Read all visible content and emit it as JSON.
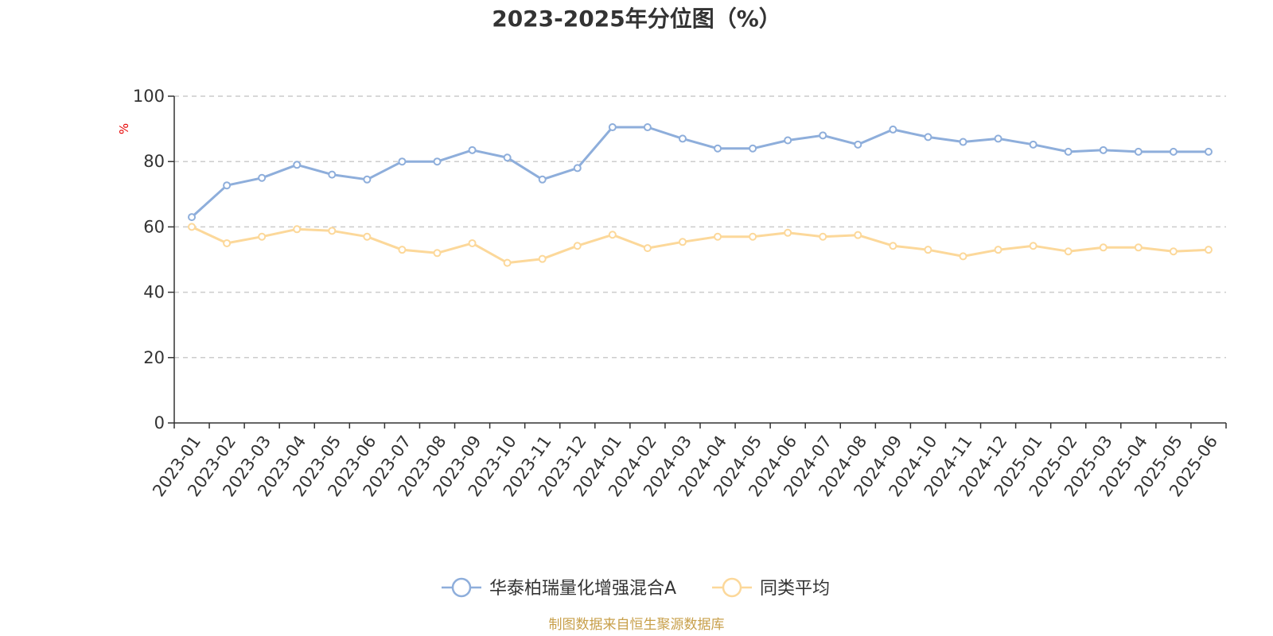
{
  "source_note": "制图数据来自恒生聚源数据库",
  "chart_data": {
    "type": "line",
    "title": "2023-2025年分位图（%）",
    "ylabel": "%",
    "xlabel": "",
    "ylim": [
      0,
      100
    ],
    "yticks": [
      0,
      20,
      40,
      60,
      80,
      100
    ],
    "grid": true,
    "legend_position": "bottom-center",
    "categories": [
      "2023-01",
      "2023-02",
      "2023-03",
      "2023-04",
      "2023-05",
      "2023-06",
      "2023-07",
      "2023-08",
      "2023-09",
      "2023-10",
      "2023-11",
      "2023-12",
      "2024-01",
      "2024-02",
      "2024-03",
      "2024-04",
      "2024-05",
      "2024-06",
      "2024-07",
      "2024-08",
      "2024-09",
      "2024-10",
      "2024-11",
      "2024-12",
      "2025-01",
      "2025-02",
      "2025-03",
      "2025-04",
      "2025-05",
      "2025-06"
    ],
    "series": [
      {
        "name": "华泰柏瑞量化增强混合A",
        "color": "#8eaedb",
        "values": [
          63,
          72.7,
          75,
          79,
          76,
          74.5,
          80,
          80,
          83.5,
          81.2,
          74.5,
          78,
          90.5,
          90.5,
          87,
          84,
          84,
          86.5,
          88,
          85.2,
          89.8,
          87.5,
          86,
          87,
          85.2,
          83,
          83.5,
          83,
          83,
          83
        ]
      },
      {
        "name": "同类平均",
        "color": "#fcd89a",
        "values": [
          60,
          55,
          57,
          59.3,
          58.8,
          57,
          53,
          52,
          55,
          49,
          50.2,
          54.2,
          57.6,
          53.5,
          55.4,
          57,
          57,
          58.2,
          57,
          57.5,
          54.2,
          53,
          51,
          53,
          54.2,
          52.5,
          53.7,
          53.7,
          52.5,
          53
        ]
      }
    ]
  }
}
